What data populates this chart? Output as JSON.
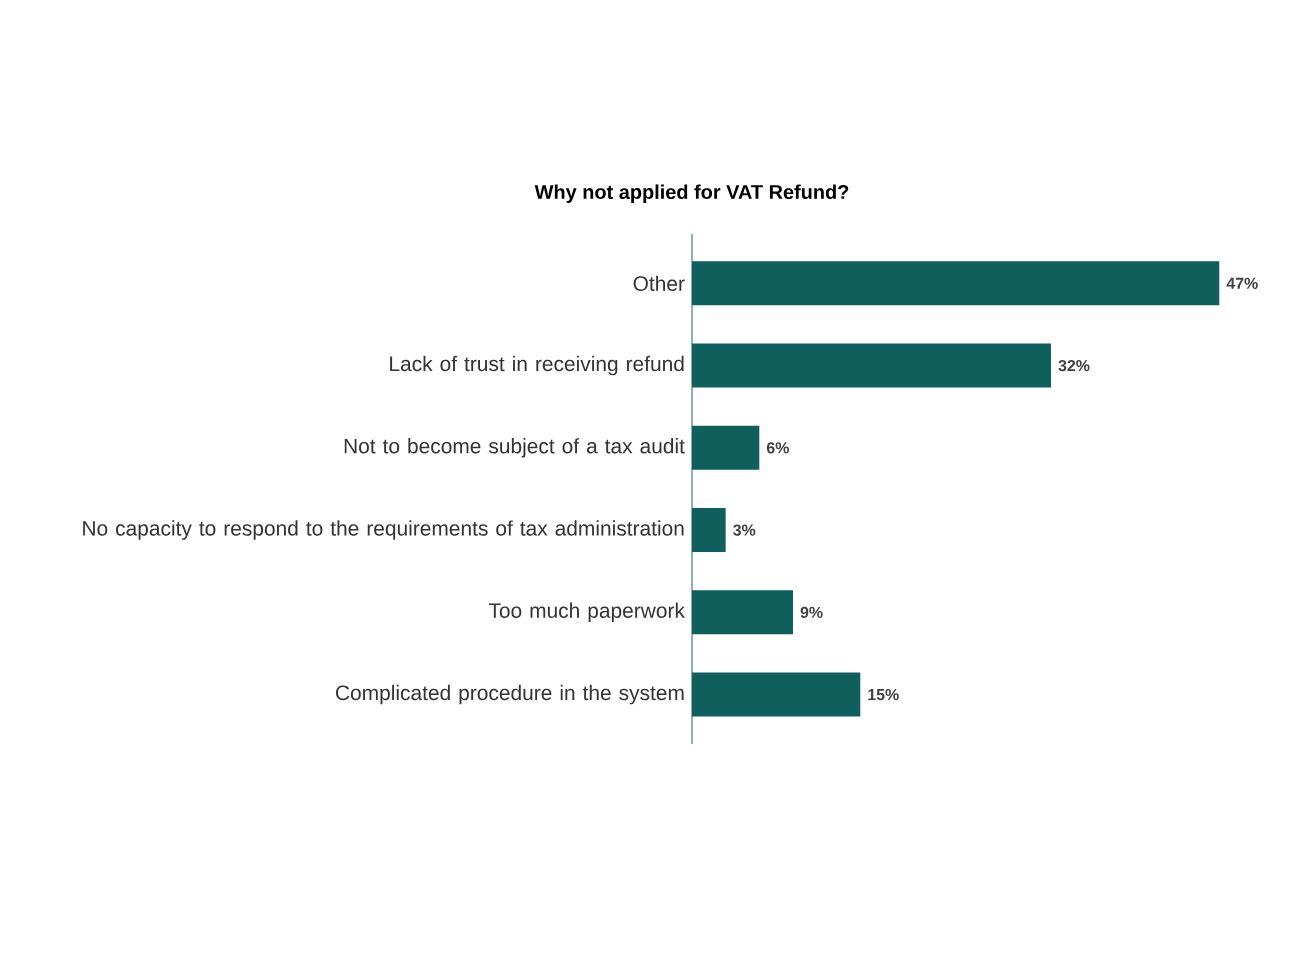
{
  "chart_data": {
    "type": "bar",
    "orientation": "horizontal",
    "title": "Why not applied for VAT Refund?",
    "categories": [
      "Other",
      "Lack of trust in receiving refund",
      "Not to become subject of a tax audit",
      "No capacity to respond to the requirements of tax administration",
      "Too much paperwork",
      "Complicated procedure in the system"
    ],
    "values": [
      47,
      32,
      6,
      3,
      9,
      15
    ],
    "value_labels": [
      "47%",
      "32%",
      "6%",
      "3%",
      "9%",
      "15%"
    ],
    "color": "#0f5f5c"
  }
}
